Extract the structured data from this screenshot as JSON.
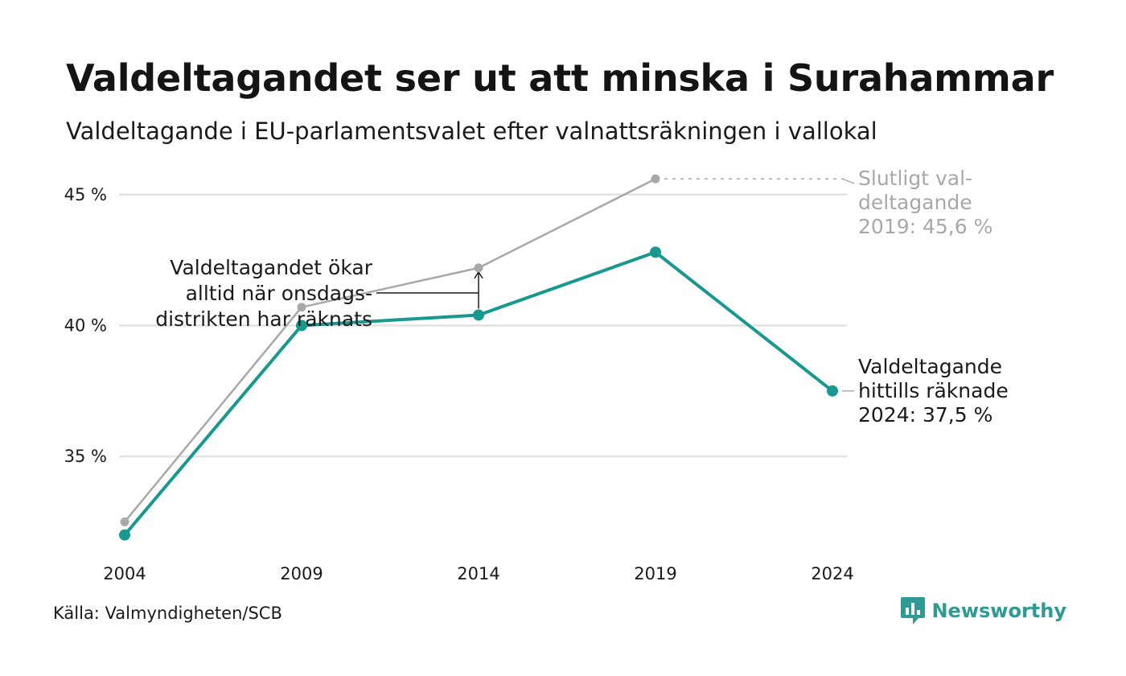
{
  "header": {
    "title": "Valdeltagandet ser ut att minska i Surahammar",
    "subtitle": "Valdeltagande i EU-parlamentsvalet efter valnattsräkningen i vallokal"
  },
  "chart_data": {
    "type": "line",
    "title": "Valdeltagandet ser ut att minska i Surahammar",
    "subtitle": "Valdeltagande i EU-parlamentsvalet efter valnattsräkningen i vallokal",
    "x": [
      "2004",
      "2009",
      "2014",
      "2019",
      "2024"
    ],
    "y_ticks": [
      35,
      40,
      45
    ],
    "y_tick_labels": [
      "35 %",
      "40 %",
      "45 %"
    ],
    "ylim": [
      31.5,
      46.5
    ],
    "grid": true,
    "series": [
      {
        "key": "final",
        "color": "#a8a8a8",
        "values": [
          32.5,
          40.7,
          42.2,
          45.6,
          null
        ]
      },
      {
        "key": "valnatt",
        "color": "#17998f",
        "values": [
          32.0,
          40.0,
          40.4,
          42.8,
          37.5
        ]
      }
    ],
    "annotations": {
      "final_2019": [
        "Slutligt val-",
        "deltagande",
        "2019: 45,6 %"
      ],
      "current_2024": [
        "Valdeltagande",
        "hittills räknade",
        "2024: 37,5 %"
      ],
      "wednesday": [
        "Valdeltagandet ökar",
        "alltid när onsdags-",
        "distrikten har räknats"
      ]
    }
  },
  "footer": {
    "source": "Källa: Valmyndigheten/SCB",
    "brand": "Newsworthy"
  }
}
